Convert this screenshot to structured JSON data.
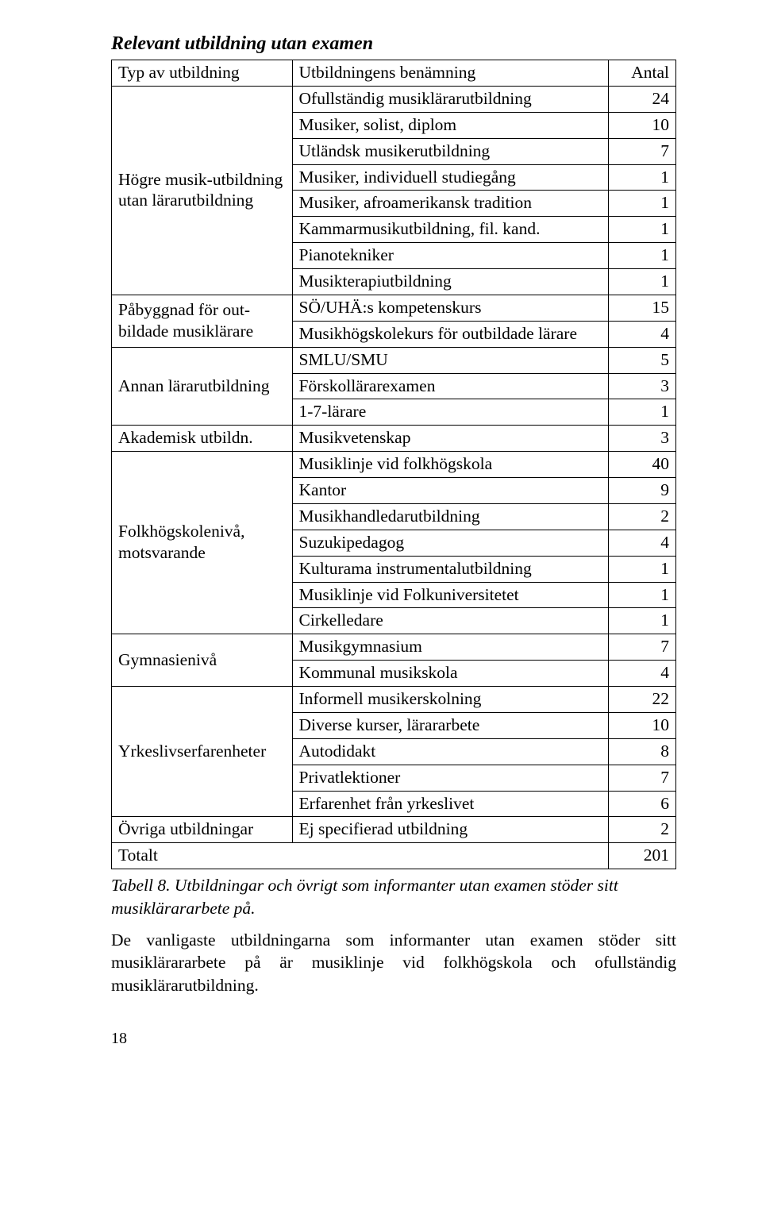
{
  "heading": "Relevant utbildning utan examen",
  "table": {
    "header": {
      "c1": "Typ av utbildning",
      "c2": "Utbildningens benämning",
      "c3": "Antal"
    },
    "footer": {
      "c1": "Totalt",
      "c3": "201"
    },
    "groups": [
      {
        "label": "Högre musik-utbildning utan lärarutbildning",
        "rows": [
          {
            "name": "Ofullständig musiklärarutbildning",
            "count": "24"
          },
          {
            "name": "Musiker, solist, diplom",
            "count": "10"
          },
          {
            "name": "Utländsk musikerutbildning",
            "count": "7"
          },
          {
            "name": "Musiker, individuell studiegång",
            "count": "1"
          },
          {
            "name": "Musiker, afroamerikansk tradition",
            "count": "1"
          },
          {
            "name": "Kammarmusikutbildning, fil. kand.",
            "count": "1"
          },
          {
            "name": "Pianotekniker",
            "count": "1"
          },
          {
            "name": "Musikterapiutbildning",
            "count": "1"
          }
        ]
      },
      {
        "label": "Påbyggnad för out-bildade musiklärare",
        "rows": [
          {
            "name": "SÖ/UHÄ:s kompetenskurs",
            "count": "15"
          },
          {
            "name": "Musikhögskolekurs för outbildade lärare",
            "count": "4"
          }
        ]
      },
      {
        "label": "Annan lärarutbildning",
        "rows": [
          {
            "name": "SMLU/SMU",
            "count": "5"
          },
          {
            "name": "Förskollärarexamen",
            "count": "3"
          },
          {
            "name": "1-7-lärare",
            "count": "1"
          }
        ]
      },
      {
        "label": "Akademisk utbildn.",
        "rows": [
          {
            "name": "Musikvetenskap",
            "count": "3"
          }
        ]
      },
      {
        "label": "Folkhögskolenivå, motsvarande",
        "rows": [
          {
            "name": "Musiklinje vid folkhögskola",
            "count": "40"
          },
          {
            "name": "Kantor",
            "count": "9"
          },
          {
            "name": "Musikhandledarutbildning",
            "count": "2"
          },
          {
            "name": "Suzukipedagog",
            "count": "4"
          },
          {
            "name": "Kulturama instrumentalutbildning",
            "count": "1"
          },
          {
            "name": "Musiklinje vid Folkuniversitetet",
            "count": "1"
          },
          {
            "name": "Cirkelledare",
            "count": "1"
          }
        ]
      },
      {
        "label": "Gymnasienivå",
        "rows": [
          {
            "name": "Musikgymnasium",
            "count": "7"
          },
          {
            "name": "Kommunal musikskola",
            "count": "4"
          }
        ]
      },
      {
        "label": "Yrkeslivserfarenheter",
        "rows": [
          {
            "name": "Informell musikerskolning",
            "count": "22"
          },
          {
            "name": "Diverse kurser, lärararbete",
            "count": "10"
          },
          {
            "name": "Autodidakt",
            "count": "8"
          },
          {
            "name": "Privatlektioner",
            "count": "7"
          },
          {
            "name": "Erfarenhet från yrkeslivet",
            "count": "6"
          }
        ]
      },
      {
        "label": "Övriga utbildningar",
        "rows": [
          {
            "name": "Ej specifierad utbildning",
            "count": "2"
          }
        ]
      }
    ]
  },
  "caption": "Tabell 8. Utbildningar och övrigt som informanter utan examen stöder sitt musiklärararbete på.",
  "body": "De vanligaste utbildningarna som informanter utan examen stöder sitt musiklärararbete på är musiklinje vid folkhögskola och ofullständig musiklärarutbildning.",
  "pagenum": "18"
}
